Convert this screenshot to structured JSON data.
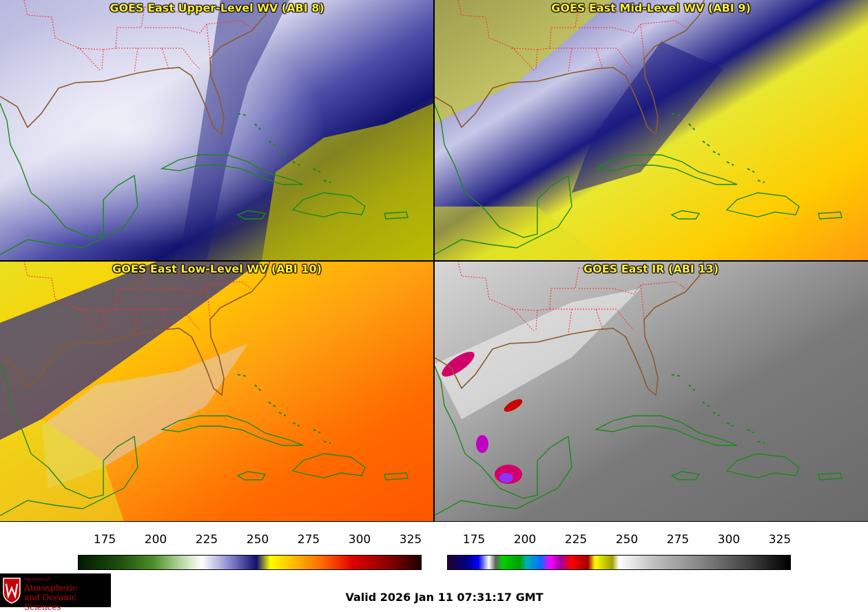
{
  "panels": [
    {
      "title": "GOES East Upper-Level WV (ABI 8)",
      "palette": "upper"
    },
    {
      "title": "GOES East Mid-Level WV (ABI 9)",
      "palette": "mid"
    },
    {
      "title": "GOES East Low-Level WV (ABI 10)",
      "palette": "low"
    },
    {
      "title": "GOES East IR (ABI 13)",
      "palette": "ir"
    }
  ],
  "colorbars": {
    "wv": {
      "ticks": [
        "175",
        "200",
        "225",
        "250",
        "275",
        "300",
        "325"
      ]
    },
    "ir": {
      "ticks": [
        "175",
        "200",
        "225",
        "250",
        "275",
        "300",
        "325"
      ]
    }
  },
  "colors": {
    "state_borders": "#ff2a2a",
    "coastline_us": "#8b5a2b",
    "coastline_other": "#1a8a1a",
    "title_text": "#ffee33"
  },
  "logo": {
    "line1": "Department of",
    "line2": "Atmospheric",
    "line3": "and Oceanic Sciences"
  },
  "valid_time": "Valid 2026 Jan 11 07:31:17 GMT"
}
